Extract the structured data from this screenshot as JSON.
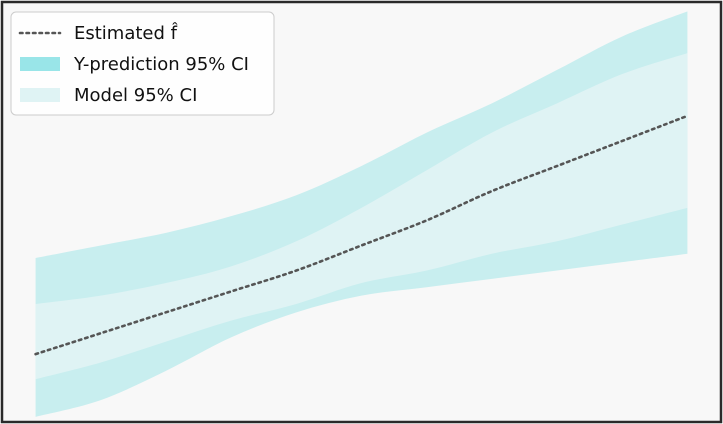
{
  "chart_data": {
    "type": "area",
    "x": [
      0,
      0.1,
      0.2,
      0.3,
      0.4,
      0.5,
      0.6,
      0.7,
      0.8,
      0.9,
      1.0
    ],
    "xlim": [
      -0.05,
      1.05
    ],
    "ylim": [
      0,
      1
    ],
    "grid": false,
    "legend_position": "top-left",
    "series": [
      {
        "name": "Estimated f̂",
        "kind": "line",
        "style": "dotted",
        "color": "#555555",
        "values": [
          0.16,
          0.21,
          0.26,
          0.31,
          0.36,
          0.42,
          0.48,
          0.55,
          0.61,
          0.67,
          0.73
        ]
      },
      {
        "name": "Y-prediction 95% CI",
        "kind": "band",
        "color": "#8ee2e5",
        "lower": [
          0.01,
          0.05,
          0.12,
          0.2,
          0.26,
          0.3,
          0.32,
          0.34,
          0.36,
          0.38,
          0.4
        ],
        "upper": [
          0.39,
          0.42,
          0.45,
          0.49,
          0.54,
          0.61,
          0.69,
          0.76,
          0.84,
          0.92,
          0.98
        ]
      },
      {
        "name": "Model 95% CI",
        "kind": "band",
        "color": "#dff3f4",
        "lower": [
          0.1,
          0.14,
          0.19,
          0.24,
          0.28,
          0.33,
          0.36,
          0.4,
          0.43,
          0.47,
          0.51
        ],
        "upper": [
          0.28,
          0.3,
          0.33,
          0.37,
          0.43,
          0.51,
          0.6,
          0.69,
          0.76,
          0.83,
          0.88
        ]
      }
    ]
  },
  "colors": {
    "background": "#f8f8f8",
    "frame": "#2a2a2a",
    "legend_bg": "#ffffff",
    "legend_border": "#cccccc"
  }
}
